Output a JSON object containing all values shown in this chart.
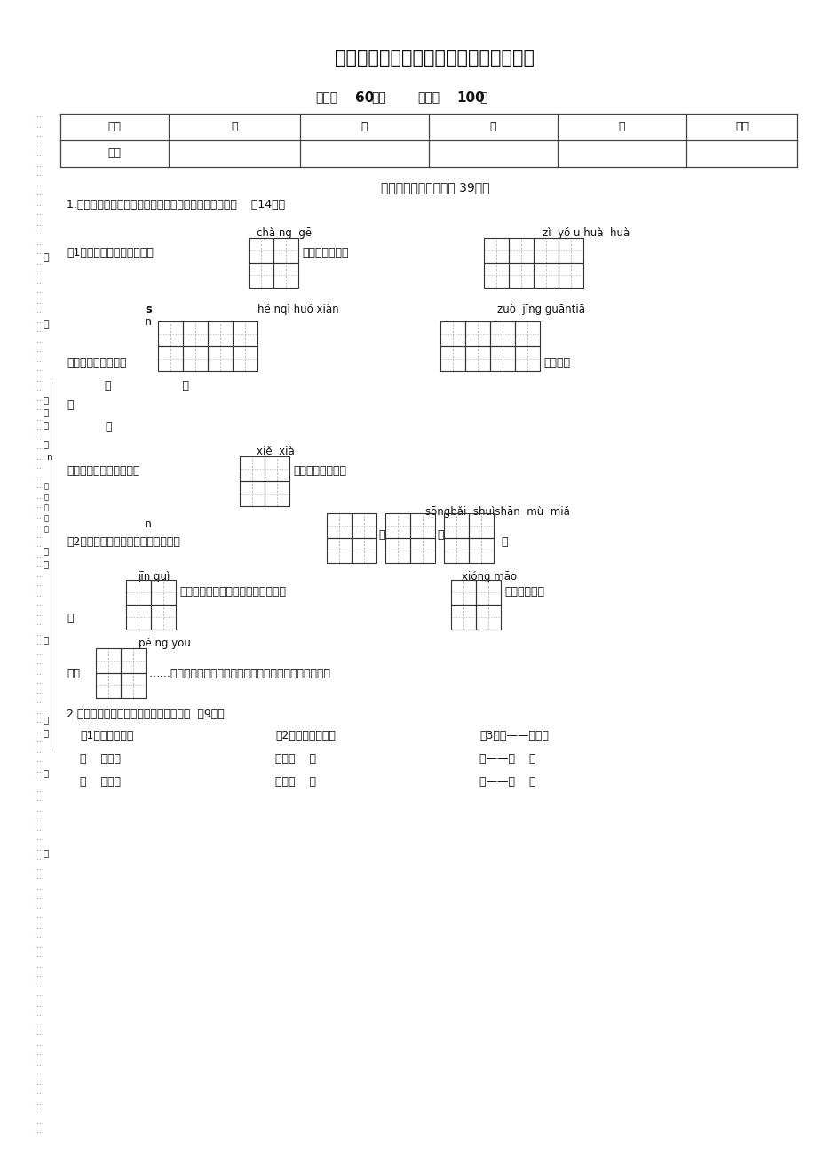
{
  "bg_color": "#ffffff",
  "title": "瑞安市小学二年级（上）语文期末模拟卷",
  "time_text": "时间：60分钟    满分：100分",
  "table_headers": [
    "题号",
    "一",
    "二",
    "三",
    "四",
    "总分"
  ],
  "table_row2": [
    "得分",
    "",
    "",
    "",
    "",
    ""
  ],
  "section1": "一、字词变化真有趣（ 39分）",
  "q1_inst": "1.填汉字。（看拼音，读语段，在田字格里把字写端正）    （14分）",
  "py_chang_ge": "chà ng  gē",
  "py_ziyou": "zì  yó u huà  huà",
  "text_1a": "（1）音乐课上，老师教我们",
  "text_1b": "；美术课，我们",
  "py_s": "s",
  "py_henqi": "hé nqì huó xiàn",
  "py_n1": "n",
  "py_zuo": "zuò  jīng guāntiā",
  "py_n2": "n",
  "text_2a": "语文课上，老师说，",
  "text_2b": "是成语，",
  "text_book": "《                    》",
  "text_bu": "不",
  "text_nei": "内",
  "py_xiexia": "xiě  xià",
  "text_3a": "是寓言故事。我拿起笔，",
  "text_3b": "这些有趣的词语。",
  "py_songbai": "sōngbǎi  shuìshān  mù  miá",
  "py_n3": "n",
  "text_4a": "（2）这学期，我认识了许多树木，有",
  "py_jingui": "jīn guì",
  "py_xiongmao": "xióng māo",
  "text_5a": "；知道了许多动物，有雄鹰、孔雀、",
  "text_5b": "；知道了人和",
  "text_dong": "动",
  "py_pengyou": "pé ng you",
  "text_6a": "物是",
  "text_6b": "……在语文课上，我学到了许许多多的知识，我爱语文课。",
  "q2_inst": "2.写词语。（仿照例子填写合适的词语）  （9分）",
  "ex1": "例1：（弹）钢琴",
  "ex2": "例2：一只（花猫）",
  "ex3": "例3：买——（卖）",
  "r1c1": "（    ）儿歌",
  "r1c2": "一朵（    ）",
  "r1c3": "苦——（    ）",
  "r2c1": "（    ）牛奶",
  "r2c2": "一条（    ）",
  "r2c3": "好——（    ）",
  "margin_chars": [
    "题",
    "答",
    "号",
    "位",
    "座",
    "要",
    "n",
    "线",
    "名",
    "姓",
    "订",
    "装"
  ],
  "dots": "..."
}
